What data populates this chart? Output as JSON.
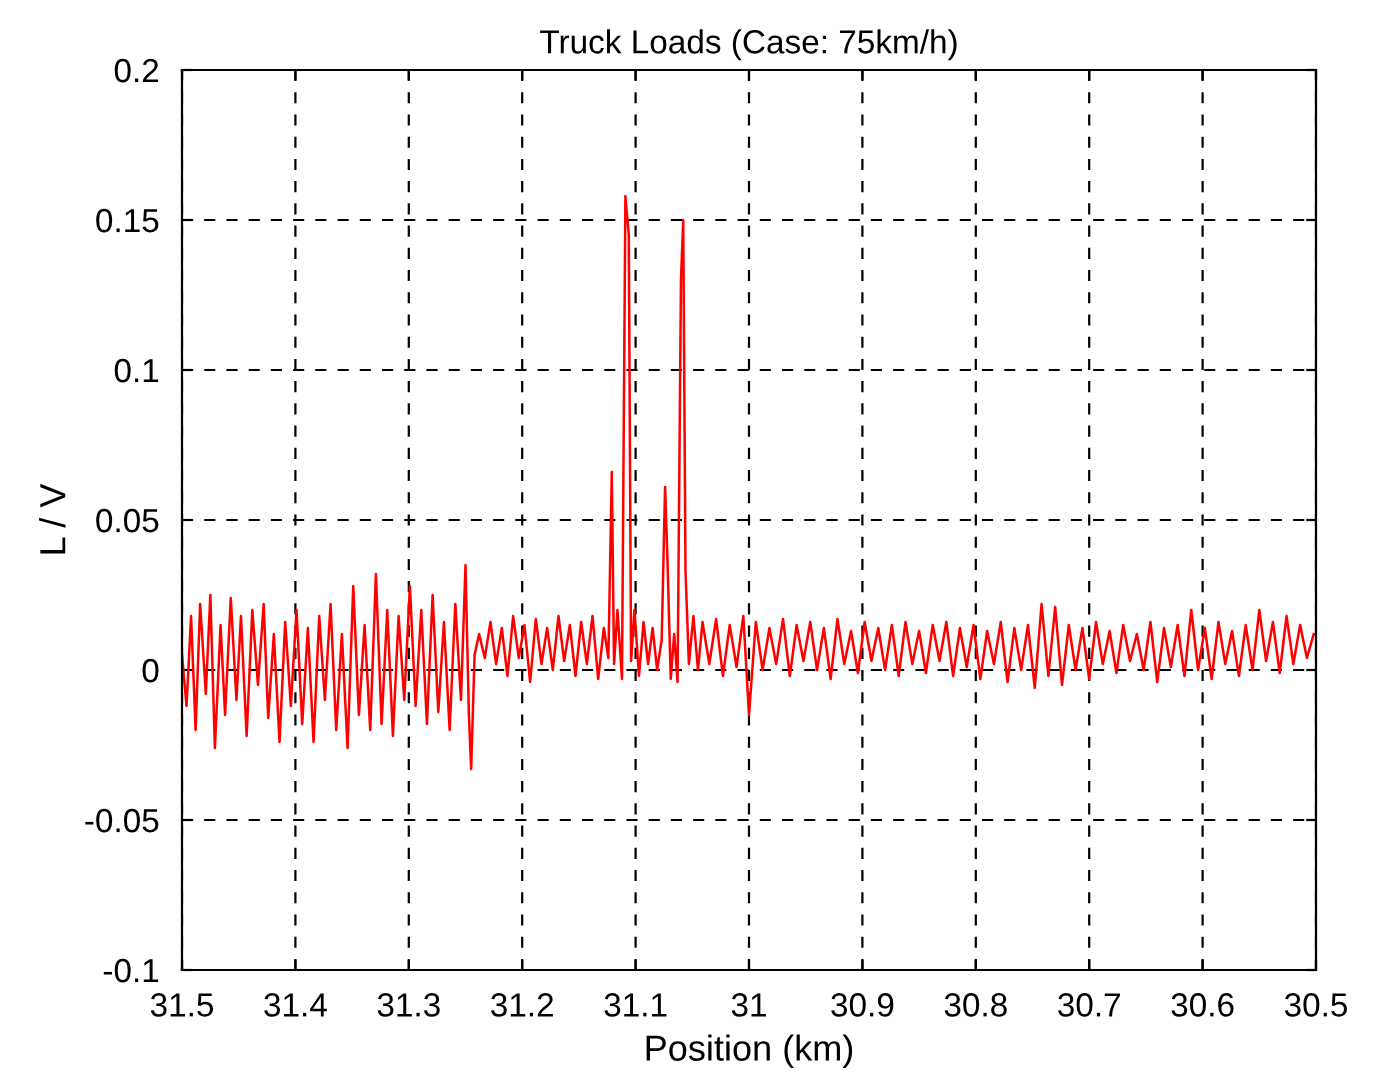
{
  "chart_data": {
    "type": "line",
    "title": "Truck Loads (Case: 75km/h)",
    "xlabel": "Position (km)",
    "ylabel": "L / V",
    "xlim": [
      31.5,
      30.5
    ],
    "ylim": [
      -0.1,
      0.2
    ],
    "xticks": [
      31.5,
      31.4,
      31.3,
      31.2,
      31.1,
      31,
      30.9,
      30.8,
      30.7,
      30.6,
      30.5
    ],
    "yticks": [
      -0.1,
      -0.05,
      0,
      0.05,
      0.1,
      0.15,
      0.2
    ],
    "grid": true,
    "line_style": "solid",
    "marker": "none",
    "series": [
      {
        "color": "#ff0000",
        "x": [
          31.5,
          31.496,
          31.492,
          31.488,
          31.484,
          31.479,
          31.475,
          31.471,
          31.466,
          31.462,
          31.457,
          31.452,
          31.448,
          31.443,
          31.438,
          31.433,
          31.428,
          31.424,
          31.419,
          31.414,
          31.409,
          31.404,
          31.399,
          31.394,
          31.389,
          31.384,
          31.379,
          31.374,
          31.369,
          31.364,
          31.359,
          31.354,
          31.349,
          31.344,
          31.339,
          31.334,
          31.329,
          31.324,
          31.319,
          31.314,
          31.309,
          31.304,
          31.299,
          31.294,
          31.289,
          31.284,
          31.279,
          31.274,
          31.269,
          31.264,
          31.259,
          31.254,
          31.25,
          31.247,
          31.245,
          31.242,
          31.238,
          31.233,
          31.228,
          31.223,
          31.218,
          31.213,
          31.208,
          31.203,
          31.198,
          31.193,
          31.188,
          31.183,
          31.178,
          31.173,
          31.168,
          31.163,
          31.158,
          31.153,
          31.148,
          31.143,
          31.138,
          31.133,
          31.128,
          31.124,
          31.121,
          31.119,
          31.116,
          31.112,
          31.109,
          31.106,
          31.104,
          31.101,
          31.097,
          31.093,
          31.089,
          31.085,
          31.081,
          31.077,
          31.074,
          31.072,
          31.069,
          31.066,
          31.063,
          31.06,
          31.058,
          31.056,
          31.053,
          31.049,
          31.045,
          31.041,
          31.035,
          31.029,
          31.023,
          31.017,
          31.011,
          31.005,
          31.0,
          30.994,
          30.988,
          30.982,
          30.976,
          30.97,
          30.964,
          30.958,
          30.952,
          30.946,
          30.94,
          30.934,
          30.928,
          30.922,
          30.916,
          30.91,
          30.904,
          30.898,
          30.892,
          30.886,
          30.88,
          30.874,
          30.868,
          30.862,
          30.856,
          30.85,
          30.844,
          30.838,
          30.832,
          30.826,
          30.82,
          30.814,
          30.808,
          30.802,
          30.796,
          30.79,
          30.784,
          30.778,
          30.772,
          30.766,
          30.76,
          30.754,
          30.748,
          30.742,
          30.736,
          30.73,
          30.724,
          30.718,
          30.712,
          30.706,
          30.7,
          30.694,
          30.688,
          30.682,
          30.676,
          30.67,
          30.664,
          30.658,
          30.652,
          30.646,
          30.64,
          30.634,
          30.628,
          30.622,
          30.616,
          30.61,
          30.604,
          30.598,
          30.592,
          30.586,
          30.58,
          30.574,
          30.568,
          30.562,
          30.556,
          30.55,
          30.544,
          30.538,
          30.532,
          30.526,
          30.52,
          30.514,
          30.508,
          30.502
        ],
        "values": [
          0.005,
          -0.012,
          0.018,
          -0.02,
          0.022,
          -0.008,
          0.025,
          -0.026,
          0.015,
          -0.015,
          0.024,
          -0.01,
          0.018,
          -0.022,
          0.02,
          -0.005,
          0.022,
          -0.016,
          0.012,
          -0.024,
          0.016,
          -0.012,
          0.02,
          -0.018,
          0.014,
          -0.024,
          0.018,
          -0.01,
          0.022,
          -0.02,
          0.012,
          -0.026,
          0.028,
          -0.015,
          0.015,
          -0.02,
          0.032,
          -0.018,
          0.02,
          -0.022,
          0.018,
          -0.01,
          0.028,
          -0.012,
          0.02,
          -0.018,
          0.025,
          -0.014,
          0.016,
          -0.02,
          0.022,
          -0.01,
          0.035,
          -0.015,
          -0.033,
          0.005,
          0.012,
          0.004,
          0.016,
          0.002,
          0.014,
          -0.002,
          0.018,
          0.004,
          0.015,
          -0.004,
          0.017,
          0.002,
          0.014,
          0.0,
          0.018,
          0.003,
          0.015,
          -0.002,
          0.016,
          0.002,
          0.018,
          -0.003,
          0.014,
          0.004,
          0.066,
          0.002,
          0.02,
          -0.003,
          0.158,
          0.145,
          0.003,
          0.02,
          -0.002,
          0.016,
          0.002,
          0.014,
          0.0,
          0.01,
          0.061,
          0.038,
          -0.003,
          0.012,
          -0.004,
          0.13,
          0.15,
          0.033,
          0.002,
          0.018,
          0.0,
          0.016,
          0.002,
          0.017,
          -0.002,
          0.015,
          0.001,
          0.018,
          -0.015,
          0.016,
          0.0,
          0.014,
          0.002,
          0.017,
          -0.002,
          0.015,
          0.003,
          0.016,
          0.0,
          0.014,
          -0.003,
          0.017,
          0.002,
          0.013,
          -0.001,
          0.016,
          0.003,
          0.014,
          0.0,
          0.015,
          -0.002,
          0.016,
          0.002,
          0.013,
          -0.001,
          0.015,
          0.003,
          0.016,
          -0.002,
          0.014,
          0.001,
          0.015,
          -0.003,
          0.013,
          0.002,
          0.016,
          -0.004,
          0.014,
          0.0,
          0.015,
          -0.006,
          0.022,
          -0.002,
          0.021,
          -0.005,
          0.015,
          0.0,
          0.014,
          -0.003,
          0.016,
          0.002,
          0.013,
          -0.001,
          0.015,
          0.003,
          0.012,
          0.0,
          0.016,
          -0.004,
          0.014,
          0.001,
          0.015,
          -0.002,
          0.02,
          0.0,
          0.014,
          -0.003,
          0.016,
          0.002,
          0.013,
          -0.002,
          0.015,
          0.0,
          0.02,
          0.003,
          0.016,
          -0.001,
          0.018,
          0.002,
          0.015,
          0.004,
          0.012
        ]
      }
    ]
  }
}
